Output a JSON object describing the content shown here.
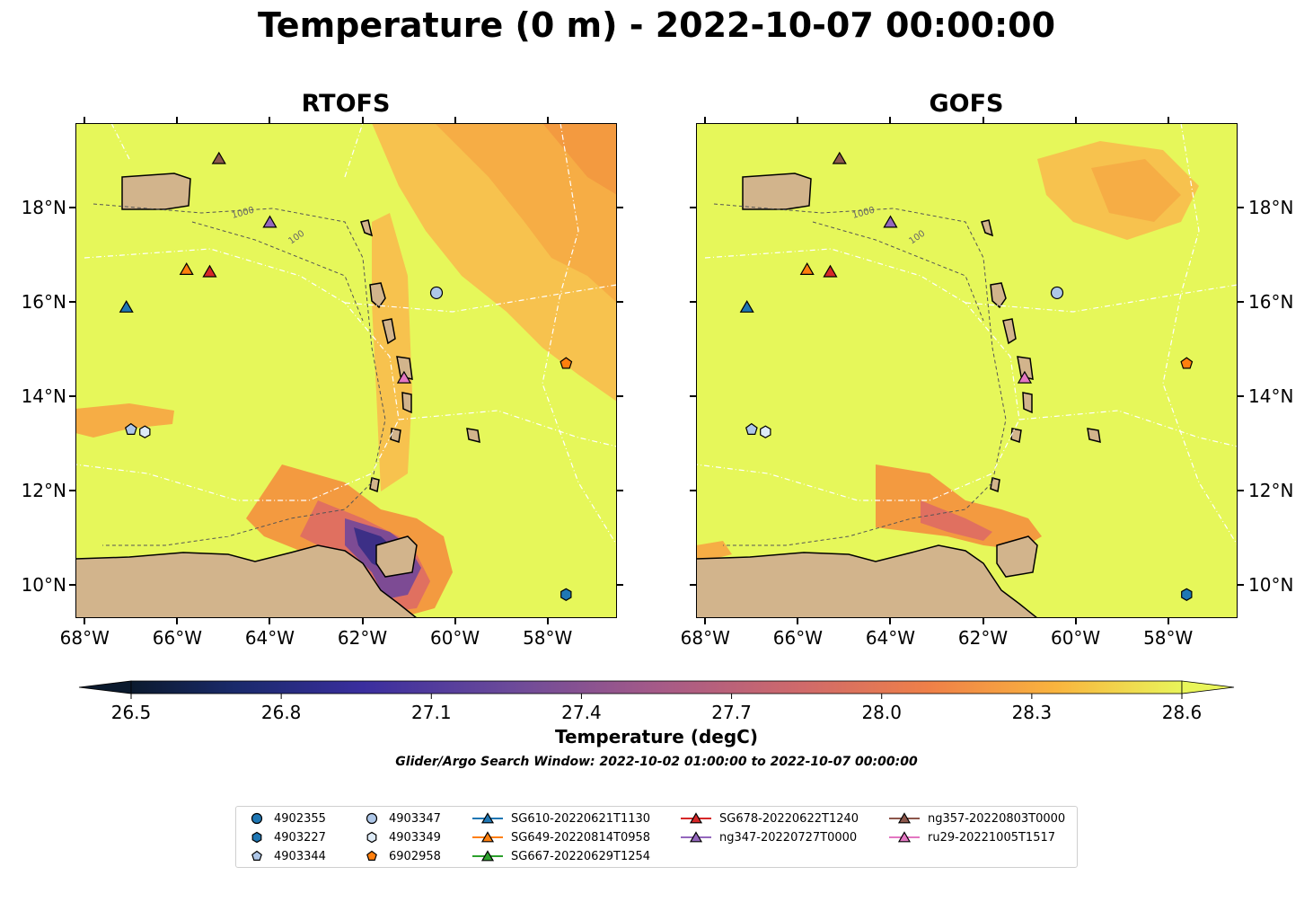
{
  "title": "Temperature (0 m) - 2022-10-07 00:00:00",
  "panels": [
    {
      "title": "RTOFS"
    },
    {
      "title": "GOFS"
    }
  ],
  "lon_ticks": [
    "68°W",
    "66°W",
    "64°W",
    "62°W",
    "60°W",
    "58°W"
  ],
  "lat_ticks": [
    "18°N",
    "16°N",
    "14°N",
    "12°N",
    "10°N"
  ],
  "contour_labels": [
    "1000",
    "100"
  ],
  "colorbar": {
    "ticks": [
      "26.5",
      "26.8",
      "27.1",
      "27.4",
      "27.7",
      "28.0",
      "28.3",
      "28.6"
    ],
    "label": "Temperature (degC)",
    "subtitle": "Glider/Argo Search Window: 2022-10-02 01:00:00 to 2022-10-07 00:00:00"
  },
  "colors": {
    "land": "#d2b48c",
    "ocean_base": "#e6f75a",
    "warm": "#f7b84a",
    "cool": "#3c2f86",
    "lake": "#9ab8de"
  },
  "legend": [
    {
      "label": "4902355",
      "marker": "circle",
      "color": "#1f77b4"
    },
    {
      "label": "4903227",
      "marker": "hexagon",
      "color": "#1f77b4"
    },
    {
      "label": "4903344",
      "marker": "pentagon",
      "color": "#aec7e8"
    },
    {
      "label": "4903347",
      "marker": "circle",
      "color": "#aec7e8"
    },
    {
      "label": "4903349",
      "marker": "hexagon",
      "color": "#deebf7"
    },
    {
      "label": "6902958",
      "marker": "pentagon",
      "color": "#ff7f0e"
    },
    {
      "label": "SG610-20220621T1130",
      "marker": "triangle",
      "color": "#1f77b4"
    },
    {
      "label": "SG649-20220814T0958",
      "marker": "triangle",
      "color": "#ff7f0e"
    },
    {
      "label": "SG667-20220629T1254",
      "marker": "triangle",
      "color": "#2ca02c"
    },
    {
      "label": "SG678-20220622T1240",
      "marker": "triangle",
      "color": "#d62728"
    },
    {
      "label": "ng347-20220727T0000",
      "marker": "triangle",
      "color": "#9467bd"
    },
    {
      "label": "ng357-20220803T0000",
      "marker": "triangle",
      "color": "#8c564b"
    },
    {
      "label": "ru29-20221005T1517",
      "marker": "triangle",
      "color": "#e377c2"
    }
  ],
  "platforms": [
    {
      "id": "4903347",
      "marker": "circle",
      "color": "#aec7e8",
      "lon": -60.4,
      "lat": 16.2
    },
    {
      "id": "6902958",
      "marker": "pentagon",
      "color": "#ff7f0e",
      "lon": -57.6,
      "lat": 14.7
    },
    {
      "id": "4903344",
      "marker": "pentagon",
      "color": "#aec7e8",
      "lon": -67.0,
      "lat": 13.3
    },
    {
      "id": "4903349",
      "marker": "hexagon",
      "color": "#deebf7",
      "lon": -66.7,
      "lat": 13.25
    },
    {
      "id": "4903227",
      "marker": "hexagon",
      "color": "#1f77b4",
      "lon": -57.6,
      "lat": 9.8
    },
    {
      "id": "SG610-20220621T1130",
      "marker": "triangle",
      "color": "#1f77b4",
      "lon": -67.1,
      "lat": 15.9
    },
    {
      "id": "SG649-20220814T0958",
      "marker": "triangle",
      "color": "#ff7f0e",
      "lon": -65.8,
      "lat": 16.7
    },
    {
      "id": "SG678-20220622T1240",
      "marker": "triangle",
      "color": "#d62728",
      "lon": -65.3,
      "lat": 16.65
    },
    {
      "id": "ng347-20220727T0000",
      "marker": "triangle",
      "color": "#9467bd",
      "lon": -64.0,
      "lat": 17.7
    },
    {
      "id": "ng357-20220803T0000",
      "marker": "triangle",
      "color": "#8c564b",
      "lon": -65.1,
      "lat": 19.05
    },
    {
      "id": "ru29-20221005T1517",
      "marker": "triangle",
      "color": "#e377c2",
      "lon": -61.1,
      "lat": 14.4
    }
  ]
}
